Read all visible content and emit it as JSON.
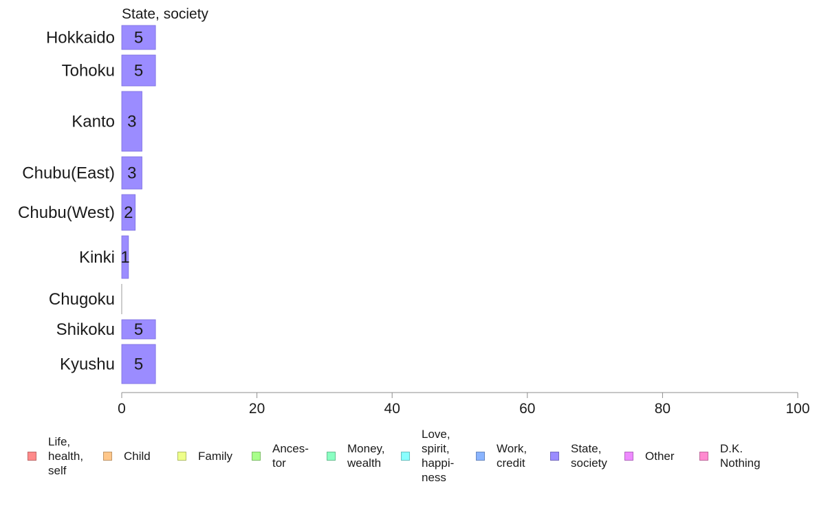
{
  "chart_data": {
    "type": "bar",
    "orientation": "horizontal",
    "title": "State, society",
    "categories": [
      "Hokkaido",
      "Tohoku",
      "Kanto",
      "Chubu(East)",
      "Chubu(West)",
      "Kinki",
      "Chugoku",
      "Shikoku",
      "Kyushu"
    ],
    "series": [
      {
        "name": "State, society",
        "values": [
          5,
          5,
          3,
          3,
          2,
          1,
          0,
          5,
          5
        ]
      }
    ],
    "data_labels": [
      "5",
      "5",
      "3",
      "3",
      "2",
      "1",
      "",
      "5",
      "5"
    ],
    "xlim": [
      0,
      100
    ],
    "xticks": [
      "0",
      "20",
      "40",
      "60",
      "80",
      "100"
    ],
    "grid": false,
    "legend_position": "bottom",
    "bar_color": "#9b8cff"
  },
  "legend": [
    {
      "label": "Life,\nhealth,\nself",
      "color": "#ff8a8a"
    },
    {
      "label": "Child",
      "color": "#ffc78a"
    },
    {
      "label": "Family",
      "color": "#eeff8a"
    },
    {
      "label": "Ances-\ntor",
      "color": "#a8ff8a"
    },
    {
      "label": "Money,\nwealth",
      "color": "#8affc2"
    },
    {
      "label": "Love,\nspirit,\nhappi-\nness",
      "color": "#8affff"
    },
    {
      "label": "Work,\ncredit",
      "color": "#8ab4ff"
    },
    {
      "label": "State,\nsociety",
      "color": "#9b8cff"
    },
    {
      "label": "Other",
      "color": "#ee8aff"
    },
    {
      "label": "D.K.\nNothing",
      "color": "#ff8ad0"
    }
  ]
}
